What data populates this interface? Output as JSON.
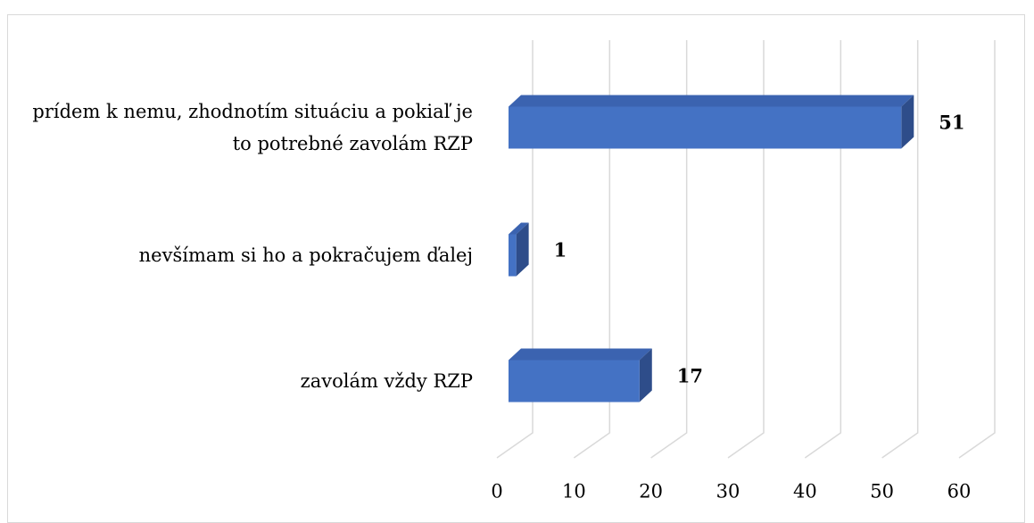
{
  "chart_data": {
    "type": "bar3d_horizontal",
    "categories": [
      "prídem k nemu, zhodnotím situáciu a pokiaľ je to potrebné zavolám RZP",
      "nevšímam si ho a pokračujem ďalej",
      "zavolám vždy RZP"
    ],
    "values": [
      51,
      1,
      17
    ],
    "color": "#4472c4",
    "xlim": [
      0,
      60
    ],
    "xticks": [
      0,
      10,
      20,
      30,
      40,
      50,
      60
    ],
    "grid": true
  }
}
